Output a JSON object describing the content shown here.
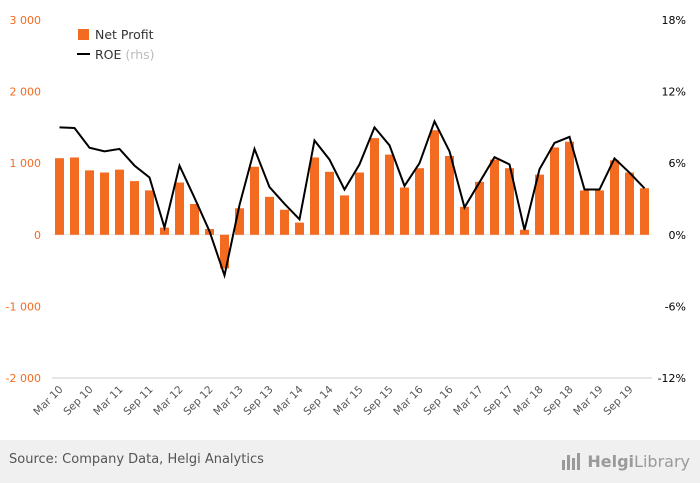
{
  "chart_data": {
    "type": "bar",
    "categories": [
      "Mar 10",
      "Jun 10",
      "Sep 10",
      "Dec 10",
      "Mar 11",
      "Jun 11",
      "Sep 11",
      "Dec 11",
      "Mar 12",
      "Jun 12",
      "Sep 12",
      "Dec 12",
      "Mar 13",
      "Jun 13",
      "Sep 13",
      "Dec 13",
      "Mar 14",
      "Jun 14",
      "Sep 14",
      "Dec 14",
      "Mar 15",
      "Jun 15",
      "Sep 15",
      "Dec 15",
      "Mar 16",
      "Jun 16",
      "Sep 16",
      "Dec 16",
      "Mar 17",
      "Jun 17",
      "Sep 17",
      "Dec 17",
      "Mar 18",
      "Jun 18",
      "Sep 18",
      "Dec 18",
      "Mar 19",
      "Jun 19",
      "Sep 19",
      "Dec 19"
    ],
    "x_tick_labels": [
      "Mar 10",
      "Sep 10",
      "Mar 11",
      "Sep 11",
      "Mar 12",
      "Sep 12",
      "Mar 13",
      "Sep 13",
      "Mar 14",
      "Sep 14",
      "Mar 15",
      "Sep 15",
      "Mar 16",
      "Sep 16",
      "Mar 17",
      "Sep 17",
      "Mar 18",
      "Sep 18",
      "Mar 19",
      "Sep 19"
    ],
    "series": [
      {
        "name": "Net Profit",
        "axis": "left",
        "type": "bar",
        "color": "#f36b21",
        "values": [
          1070,
          1080,
          900,
          870,
          910,
          750,
          620,
          100,
          730,
          430,
          80,
          -470,
          370,
          950,
          530,
          350,
          170,
          1080,
          880,
          550,
          870,
          1350,
          1120,
          660,
          930,
          1460,
          1100,
          390,
          740,
          1050,
          930,
          70,
          840,
          1220,
          1300,
          620,
          620,
          1040,
          870,
          650
        ]
      },
      {
        "name": "ROE",
        "name_suffix": "(rhs)",
        "axis": "right",
        "type": "line",
        "color": "#000000",
        "values": [
          9.0,
          8.95,
          7.3,
          7.0,
          7.2,
          5.8,
          4.8,
          0.6,
          5.8,
          3.1,
          0.3,
          -3.4,
          2.5,
          7.2,
          4.0,
          2.6,
          1.3,
          7.9,
          6.3,
          3.8,
          5.9,
          9.0,
          7.5,
          4.1,
          6.0,
          9.5,
          7.0,
          2.3,
          4.4,
          6.5,
          5.9,
          0.4,
          5.5,
          7.7,
          8.2,
          3.8,
          3.8,
          6.4,
          5.2,
          3.9
        ]
      }
    ],
    "y_left": {
      "ticks": [
        3000,
        2000,
        1000,
        0,
        -1000,
        -2000
      ],
      "tick_labels": [
        "3 000",
        "2 000",
        "1 000",
        "0",
        "-1 000",
        "-2 000"
      ],
      "range": [
        -2000,
        3000
      ]
    },
    "y_right": {
      "ticks": [
        18,
        12,
        6,
        0,
        -6,
        -12
      ],
      "tick_labels": [
        "18%",
        "12%",
        "6%",
        "0%",
        "-6%",
        "-12%"
      ],
      "range": [
        -12,
        18
      ]
    },
    "legend_position": "top-left",
    "grid": false
  },
  "colors": {
    "bar": "#f36b21",
    "line": "#000000",
    "left_axis_text": "#f36b21",
    "right_axis_text": "#000000",
    "footer_bg": "#f0f0f0"
  },
  "footer": {
    "source": "Source: Company Data, Helgi Analytics",
    "logo_helgi": "Helgi",
    "logo_library": "Library",
    "logo_icon": "bar-chart-icon"
  }
}
